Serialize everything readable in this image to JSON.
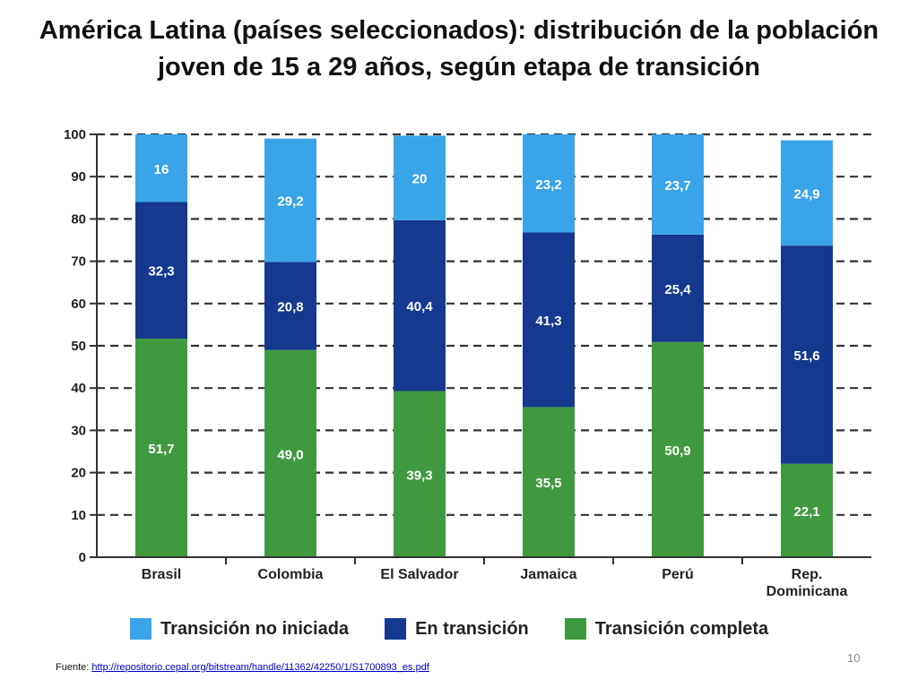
{
  "title": "América Latina (países seleccionados): distribución de la población joven de 15 a 29 años, según etapa de transición",
  "source": {
    "label": "Fuente:",
    "url": "http://repositorio.cepal.org/bitstream/handle/11362/42250/1/S1700893_es.pdf"
  },
  "page_number": "10",
  "colors": {
    "no_iniciada": "#3aa4e8",
    "en_transicion": "#14398f",
    "completa": "#3f9a3f"
  },
  "chart_data": {
    "type": "bar",
    "stacked": true,
    "categories": [
      "Brasil",
      "Colombia",
      "El Salvador",
      "Jamaica",
      "Perú",
      "Rep. Dominicana"
    ],
    "category_lines": [
      [
        "Brasil"
      ],
      [
        "Colombia"
      ],
      [
        "El Salvador"
      ],
      [
        "Jamaica"
      ],
      [
        "Perú"
      ],
      [
        "Rep.",
        "Dominicana"
      ]
    ],
    "series": [
      {
        "name": "Transición completa",
        "key": "completa",
        "values": [
          51.7,
          49.0,
          39.3,
          35.5,
          50.9,
          22.1
        ],
        "labels": [
          "51,7",
          "49,0",
          "39,3",
          "35,5",
          "50,9",
          "22,1"
        ]
      },
      {
        "name": "En transición",
        "key": "en_transicion",
        "values": [
          32.3,
          20.8,
          40.4,
          41.3,
          25.4,
          51.6
        ],
        "labels": [
          "32,3",
          "20,8",
          "40,4",
          "41,3",
          "25,4",
          "51,6"
        ]
      },
      {
        "name": "Transición no iniciada",
        "key": "no_iniciada",
        "values": [
          16,
          29.2,
          20,
          23.2,
          23.7,
          24.9
        ],
        "labels": [
          "16",
          "29,2",
          "20",
          "23,2",
          "23,7",
          "24,9"
        ]
      }
    ],
    "legend_order": [
      "no_iniciada",
      "en_transicion",
      "completa"
    ],
    "ylim": [
      0,
      100
    ],
    "yticks": [
      0,
      10,
      20,
      30,
      40,
      50,
      60,
      70,
      80,
      90,
      100
    ],
    "grid": true,
    "legend_position": "bottom"
  }
}
